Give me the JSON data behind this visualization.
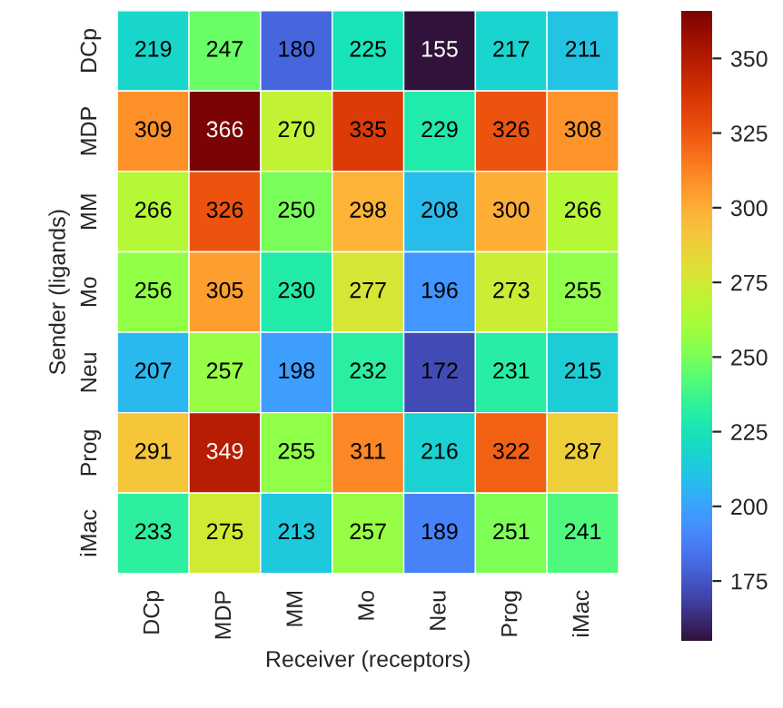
{
  "chart_data": {
    "type": "heatmap",
    "xlabel": "Receiver (receptors)",
    "ylabel": "Sender (ligands)",
    "categories": [
      "DCp",
      "MDP",
      "MM",
      "Mo",
      "Neu",
      "Prog",
      "iMac"
    ],
    "y_categories": [
      "DCp",
      "MDP",
      "MM",
      "Mo",
      "Neu",
      "Prog",
      "iMac"
    ],
    "cells": [
      [
        219,
        247,
        180,
        225,
        155,
        217,
        211
      ],
      [
        309,
        366,
        270,
        335,
        229,
        326,
        308
      ],
      [
        266,
        326,
        250,
        298,
        208,
        300,
        266
      ],
      [
        256,
        305,
        230,
        277,
        196,
        273,
        255
      ],
      [
        207,
        257,
        198,
        232,
        172,
        231,
        215
      ],
      [
        291,
        349,
        255,
        311,
        216,
        322,
        287
      ],
      [
        233,
        275,
        213,
        257,
        189,
        251,
        241
      ]
    ],
    "clim": [
      155,
      366
    ],
    "cticks": [
      175,
      200,
      225,
      250,
      275,
      300,
      325,
      350
    ],
    "data_labels": true
  }
}
